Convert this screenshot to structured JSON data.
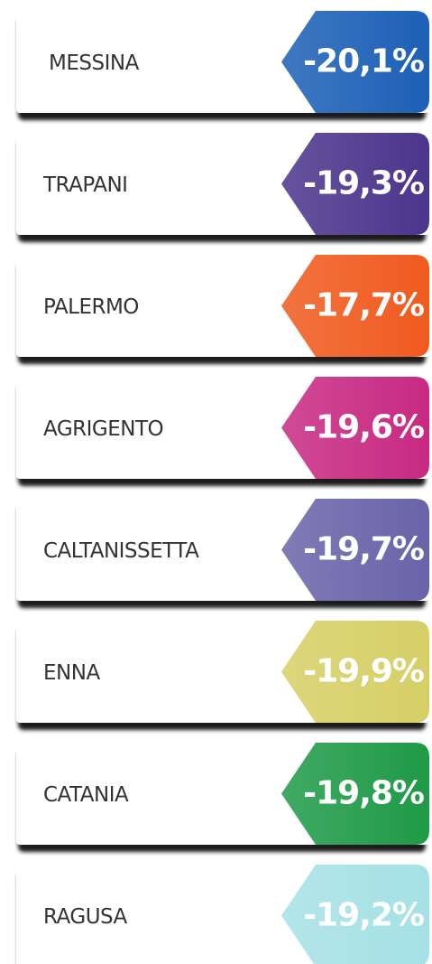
{
  "items": [
    {
      "name": "MESSINA",
      "value": "-20,1%",
      "color": "#1d60b6"
    },
    {
      "name": "TRAPANI",
      "value": "-19,3%",
      "color": "#4b358c"
    },
    {
      "name": "PALERMO",
      "value": "-17,7%",
      "color": "#f05a1e"
    },
    {
      "name": "AGRIGENTO",
      "value": "-19,6%",
      "color": "#c82a82"
    },
    {
      "name": "CALTANISSETTA",
      "value": "-19,7%",
      "color": "#6a63a9"
    },
    {
      "name": "ENNA",
      "value": "-19,9%",
      "color": "#d6cf66"
    },
    {
      "name": "CATANIA",
      "value": "-19,8%",
      "color": "#1f9a47"
    },
    {
      "name": "RAGUSA",
      "value": "-19,2%",
      "color": "#a5e1e5"
    }
  ]
}
